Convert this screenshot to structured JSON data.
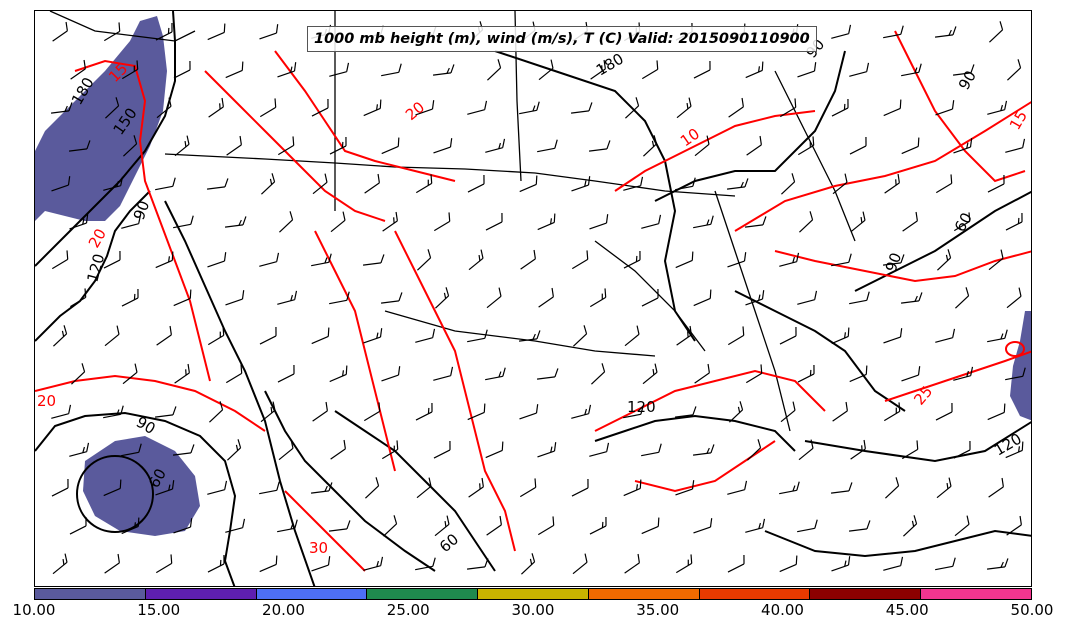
{
  "title": "1000 mb height (m), wind (m/s), T (C) Valid: 2015090110900",
  "colorbar": {
    "colors": [
      "#5a5a9c",
      "#5e1fb0",
      "#4d6ff5",
      "#1f8a4e",
      "#c9b400",
      "#f06a00",
      "#e83a00",
      "#8c0000",
      "#f2358f"
    ],
    "tick_labels": [
      "10.00",
      "15.00",
      "20.00",
      "25.00",
      "30.00",
      "35.00",
      "40.00",
      "45.00",
      "50.00"
    ]
  },
  "height_contour_labels": {
    "h180_nw": "180",
    "h150": "150",
    "h90_nw": "90",
    "h120_w": "120",
    "h90_sw": "90",
    "h60_sw": "60",
    "h180_top": "180",
    "h90_ne": "90",
    "h60_ne": "60",
    "h90_e": "90",
    "h120_gulf": "120",
    "h120_se": "120",
    "h90_east": "90",
    "h60_se": "60"
  },
  "temp_contour_labels": {
    "t15_nw": "15",
    "t20_west": "20",
    "t20_sw": "20",
    "t20_n": "20",
    "t10_n": "10",
    "t25_e": "25",
    "t30_s": "30",
    "t15_ne": "15"
  },
  "colors": {
    "height_contour": "#000000",
    "temp_contour": "#ff0000",
    "wind_fill": "#5a5a9c"
  }
}
